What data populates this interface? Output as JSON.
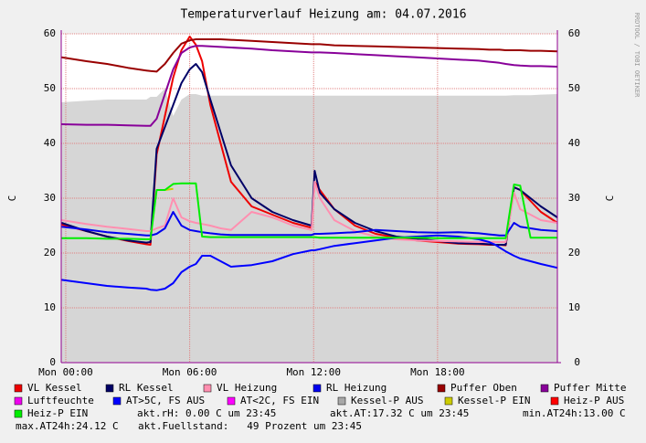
{
  "chart_data": {
    "type": "line",
    "title": "Temperaturverlauf Heizung am: 04.07.2016",
    "ylabel": "C",
    "watermark": "RRDTOOL / TOBI OETIKER",
    "x": [
      -0.2,
      1,
      2,
      3,
      3.9,
      4.1,
      4.4,
      4.8,
      5.2,
      5.6,
      6,
      6.3,
      6.6,
      7,
      7.5,
      8,
      9,
      10,
      11,
      11.9,
      12.05,
      12.3,
      13,
      14,
      15,
      16,
      17,
      18,
      19,
      20,
      20.5,
      20.8,
      21,
      21.3,
      21.7,
      22,
      22.5,
      23,
      23.8
    ],
    "xlim": [
      -0.22,
      23.8
    ],
    "xticks": [
      {
        "value": 0,
        "label": "Mon 00:00"
      },
      {
        "value": 6,
        "label": "Mon 06:00"
      },
      {
        "value": 12,
        "label": "Mon 12:00"
      },
      {
        "value": 18,
        "label": "Mon 18:00"
      }
    ],
    "ylim": [
      0,
      60
    ],
    "yticks": [
      0,
      10,
      20,
      30,
      40,
      50,
      60
    ],
    "grid": true,
    "series": [
      {
        "name": "VL Kessel",
        "color": "#ee0000",
        "values": [
          25.2,
          24,
          23,
          22.2,
          21.6,
          21.5,
          38,
          45,
          52,
          57,
          59.5,
          58,
          55,
          47,
          40,
          33,
          28.5,
          27,
          25.5,
          24.6,
          33,
          31.5,
          28,
          25,
          23.5,
          22.8,
          22.3,
          22,
          21.7,
          21.6,
          21.5,
          21.5,
          21.5,
          21.4,
          32,
          31.5,
          29.5,
          27.5,
          25.5
        ]
      },
      {
        "name": "RL Kessel",
        "color": "#000066",
        "values": [
          25.5,
          24,
          23,
          22.3,
          21.9,
          22,
          39,
          43,
          47,
          51,
          53.5,
          54.5,
          53,
          48,
          42,
          36,
          30,
          27.5,
          26,
          25,
          35,
          31,
          28,
          25.5,
          24,
          23,
          22.6,
          22.2,
          21.8,
          21.7,
          21.6,
          21.5,
          21.5,
          21.5,
          32,
          31.5,
          30,
          28.5,
          26.5
        ]
      },
      {
        "name": "VL Heizung",
        "color": "#ff8fb0",
        "values": [
          26,
          25.3,
          24.8,
          24.4,
          24,
          24,
          24.5,
          25,
          30,
          26.5,
          25.8,
          25.5,
          25.3,
          25,
          24.5,
          24.2,
          27.5,
          26.5,
          25,
          24.2,
          33,
          30,
          26,
          24,
          23,
          22.5,
          22.3,
          22.2,
          22.1,
          22,
          22,
          22,
          22,
          22,
          31,
          28,
          27,
          26,
          25.5
        ]
      },
      {
        "name": "RL Heizung",
        "color": "#0000ee",
        "values": [
          24.8,
          24.3,
          23.8,
          23.5,
          23.2,
          23.2,
          23.5,
          24.5,
          27.5,
          25,
          24.2,
          24,
          23.8,
          23.6,
          23.4,
          23.3,
          23.3,
          23.3,
          23.3,
          23.3,
          23.5,
          23.5,
          23.6,
          23.8,
          24.2,
          24,
          23.8,
          23.7,
          23.8,
          23.6,
          23.4,
          23.3,
          23.2,
          23.2,
          25.5,
          24.8,
          24.5,
          24.2,
          24
        ]
      },
      {
        "name": "Puffer Oben",
        "color": "#990000",
        "values": [
          55.7,
          55,
          54.5,
          53.8,
          53.3,
          53.2,
          53.1,
          54.5,
          56.5,
          58.2,
          58.8,
          59,
          59,
          59,
          59,
          58.9,
          58.7,
          58.5,
          58.3,
          58.1,
          58.1,
          58.1,
          57.9,
          57.8,
          57.7,
          57.6,
          57.5,
          57.4,
          57.3,
          57.2,
          57.1,
          57.1,
          57.1,
          57,
          57,
          57,
          56.9,
          56.9,
          56.8
        ]
      },
      {
        "name": "Puffer Mitte",
        "color": "#880099",
        "values": [
          43.5,
          43.4,
          43.4,
          43.3,
          43.2,
          43.2,
          44.5,
          49,
          53.5,
          56.5,
          57.5,
          57.8,
          57.8,
          57.7,
          57.6,
          57.5,
          57.3,
          57,
          56.8,
          56.6,
          56.6,
          56.6,
          56.5,
          56.3,
          56.1,
          55.9,
          55.7,
          55.5,
          55.3,
          55.1,
          54.9,
          54.8,
          54.7,
          54.5,
          54.3,
          54.2,
          54.1,
          54.1,
          54
        ]
      },
      {
        "name": "Luftfeuchte",
        "color": "#ee00ee",
        "values": [
          null,
          null,
          null,
          null,
          null,
          null,
          null,
          null,
          null,
          null,
          null,
          null,
          null,
          null,
          null,
          null,
          null,
          null,
          null,
          null,
          null,
          null,
          null,
          null,
          null,
          null,
          null,
          null,
          null,
          null,
          null,
          null,
          null,
          null,
          null,
          null,
          null,
          null,
          null
        ]
      },
      {
        "name": "AT>5C, FS AUS",
        "color": "#0000ff",
        "values": [
          15.1,
          14.5,
          14,
          13.7,
          13.5,
          13.3,
          13.2,
          13.5,
          14.5,
          16.5,
          17.5,
          18,
          19.5,
          19.5,
          18.5,
          17.5,
          17.8,
          18.5,
          19.8,
          20.5,
          20.5,
          20.7,
          21.3,
          21.8,
          22.3,
          22.8,
          23,
          23.2,
          23,
          22.5,
          22,
          21.5,
          21,
          20.3,
          19.5,
          19,
          18.5,
          18,
          17.3
        ]
      },
      {
        "name": "AT<2C, FS EIN",
        "color": "#ff00ff",
        "values": [
          null,
          null,
          null,
          null,
          null,
          null,
          null,
          null,
          null,
          null,
          null,
          null,
          null,
          null,
          null,
          null,
          null,
          null,
          null,
          null,
          null,
          null,
          null,
          null,
          null,
          null,
          null,
          null,
          null,
          null,
          null,
          null,
          null,
          null,
          null,
          null,
          null,
          null,
          null
        ]
      },
      {
        "name": "Kessel-P AUS",
        "color": "#a8a8a8",
        "fill": true,
        "values": [
          47.5,
          47.8,
          48,
          48,
          48,
          48.5,
          48.5,
          50,
          45,
          48,
          49,
          49,
          48.7,
          48.7,
          48.7,
          48.7,
          48.7,
          48.7,
          48.7,
          48.7,
          48.7,
          48.7,
          48.7,
          48.7,
          48.7,
          48.7,
          48.7,
          48.7,
          48.7,
          48.7,
          48.7,
          48.7,
          48.7,
          48.7,
          48.8,
          48.8,
          48.8,
          48.9,
          49
        ]
      },
      {
        "name": "Kessel-P EIN",
        "color": "#cccc00",
        "values": [
          null,
          null,
          null,
          null,
          null,
          null,
          31.5,
          31.5,
          31.7,
          null,
          null,
          null,
          null,
          null,
          null,
          null,
          null,
          null,
          null,
          null,
          null,
          null,
          null,
          null,
          null,
          null,
          null,
          null,
          null,
          null,
          null,
          null,
          null,
          null,
          null,
          null,
          null,
          null,
          null
        ]
      },
      {
        "name": "Heiz-P AUS",
        "color": "#ff0000",
        "values": [
          null,
          null,
          null,
          null,
          null,
          null,
          null,
          null,
          null,
          null,
          null,
          null,
          null,
          null,
          null,
          null,
          null,
          null,
          null,
          null,
          null,
          null,
          null,
          null,
          null,
          null,
          null,
          null,
          null,
          null,
          null,
          null,
          null,
          null,
          null,
          null,
          null,
          null,
          null
        ]
      },
      {
        "name": "Heiz-P EIN",
        "color": "#00ee00",
        "values": [
          22.7,
          22.7,
          22.6,
          22.6,
          22.5,
          22.5,
          31.5,
          31.5,
          32.6,
          32.7,
          32.7,
          32.7,
          23,
          22.9,
          22.9,
          22.9,
          22.9,
          22.9,
          22.9,
          22.9,
          22.9,
          22.8,
          22.8,
          22.8,
          22.8,
          22.8,
          22.8,
          22.7,
          22.7,
          22.7,
          22.7,
          22.7,
          22.7,
          22.7,
          32.5,
          32.3,
          22.8,
          22.8,
          22.8
        ]
      }
    ],
    "notes": [
      "akt.rH: 0.00 C um 23:45",
      "akt.AT:17.32 C um 23:45",
      "min.AT24h:13.00 C",
      "max.AT24h:24.12 C",
      "akt.Fuellstand:   49 Prozent um 23:45"
    ]
  }
}
